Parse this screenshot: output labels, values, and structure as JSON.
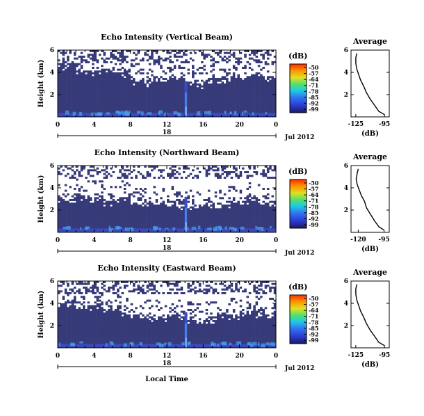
{
  "chart_data": [
    {
      "type": "heatmap",
      "title": "Echo Intensity (Vertical Beam)",
      "ylabel": "Height (km)",
      "xlabel": "",
      "x_ticks": [
        "0",
        "4",
        "8",
        "12",
        "16",
        "20",
        "0"
      ],
      "y_ticks": [
        "6",
        "4",
        "2"
      ],
      "xlim": [
        0,
        24
      ],
      "ylim": [
        0,
        6
      ],
      "date_day": "18",
      "date_month": "Jul 2012",
      "colorbar": {
        "unit": "(dB)",
        "ticks": [
          "-50",
          "-57",
          "-64",
          "-71",
          "-78",
          "-85",
          "-92",
          "-99"
        ]
      },
      "cloud_top_km": [
        4.6,
        4.7,
        4.2,
        3.9,
        4.0,
        4.3,
        4.1,
        3.9,
        3.3,
        3.1,
        3.2,
        3.3,
        3.5,
        3.4,
        3.0,
        3.0,
        3.1,
        3.3,
        3.4,
        3.4,
        3.5,
        3.6,
        3.5,
        3.4
      ],
      "average": {
        "title": "Average",
        "xlabel": "(dB)",
        "x_ticks": [
          "-125",
          "-95"
        ],
        "y_ticks": [
          "6",
          "4",
          "2"
        ],
        "xlim": [
          -130,
          -90
        ],
        "profile": [
          [
            -95,
            0.2
          ],
          [
            -101,
            0.5
          ],
          [
            -105,
            1.0
          ],
          [
            -110,
            1.6
          ],
          [
            -114,
            2.2
          ],
          [
            -117,
            2.8
          ],
          [
            -120,
            3.3
          ],
          [
            -122,
            3.8
          ],
          [
            -124,
            4.3
          ],
          [
            -125,
            4.8
          ],
          [
            -125,
            5.3
          ],
          [
            -124,
            5.7
          ]
        ]
      }
    },
    {
      "type": "heatmap",
      "title": "Echo Intensity (Northward Beam)",
      "ylabel": "Height (km)",
      "xlabel": "",
      "x_ticks": [
        "0",
        "4",
        "8",
        "12",
        "16",
        "20",
        "0"
      ],
      "y_ticks": [
        "6",
        "4",
        "2"
      ],
      "xlim": [
        0,
        24
      ],
      "ylim": [
        0,
        6
      ],
      "date_day": "18",
      "date_month": "Jul 2012",
      "colorbar": {
        "unit": "(dB)",
        "ticks": [
          "-50",
          "-57",
          "-64",
          "-71",
          "-78",
          "-85",
          "-92",
          "-99"
        ]
      },
      "cloud_top_km": [
        3.0,
        2.8,
        3.2,
        3.0,
        3.1,
        2.7,
        2.9,
        3.1,
        2.5,
        2.4,
        2.5,
        2.6,
        2.5,
        2.3,
        2.2,
        2.4,
        2.4,
        2.3,
        2.5,
        2.6,
        2.8,
        2.9,
        2.7,
        2.6
      ],
      "average": {
        "title": "Average",
        "xlabel": "(dB)",
        "x_ticks": [
          "-120",
          "-95"
        ],
        "y_ticks": [
          "6",
          "4",
          "2"
        ],
        "xlim": [
          -127,
          -90
        ],
        "profile": [
          [
            -95,
            0.2
          ],
          [
            -100,
            0.5
          ],
          [
            -104,
            1.0
          ],
          [
            -108,
            1.6
          ],
          [
            -112,
            2.2
          ],
          [
            -114,
            2.8
          ],
          [
            -117,
            3.3
          ],
          [
            -119,
            3.8
          ],
          [
            -121,
            4.3
          ],
          [
            -122,
            4.8
          ],
          [
            -121,
            5.3
          ],
          [
            -120,
            5.7
          ]
        ]
      }
    },
    {
      "type": "heatmap",
      "title": "Echo Intensity (Eastward Beam)",
      "ylabel": "Height (km)",
      "xlabel": "Local Time",
      "x_ticks": [
        "0",
        "4",
        "8",
        "12",
        "16",
        "20",
        "0"
      ],
      "y_ticks": [
        "6",
        "4",
        "2"
      ],
      "xlim": [
        0,
        24
      ],
      "ylim": [
        0,
        6
      ],
      "date_day": "18",
      "date_month": "Jul 2012",
      "colorbar": {
        "unit": "(dB)",
        "ticks": [
          "-50",
          "-57",
          "-64",
          "-71",
          "-78",
          "-85",
          "-92",
          "-99"
        ]
      },
      "cloud_top_km": [
        3.8,
        3.9,
        3.6,
        3.8,
        3.9,
        3.5,
        3.2,
        3.1,
        2.9,
        2.8,
        2.7,
        2.6,
        2.6,
        2.7,
        2.6,
        2.4,
        2.5,
        2.6,
        2.8,
        2.9,
        3.0,
        3.1,
        3.0,
        2.9
      ],
      "average": {
        "title": "Average",
        "xlabel": "(dB)",
        "x_ticks": [
          "-125",
          "-95"
        ],
        "y_ticks": [
          "6",
          "4",
          "2"
        ],
        "xlim": [
          -130,
          -90
        ],
        "profile": [
          [
            -95,
            0.2
          ],
          [
            -101,
            0.5
          ],
          [
            -105,
            1.0
          ],
          [
            -110,
            1.6
          ],
          [
            -114,
            2.2
          ],
          [
            -117,
            2.8
          ],
          [
            -120,
            3.3
          ],
          [
            -122,
            3.8
          ],
          [
            -124,
            4.3
          ],
          [
            -125,
            4.8
          ],
          [
            -125,
            5.3
          ],
          [
            -124,
            5.7
          ]
        ]
      }
    }
  ],
  "colors": {
    "field": "#363a78",
    "mid": "#3a4cc8",
    "bright": "#4aa0f0",
    "peak": "#a8e8ff"
  }
}
